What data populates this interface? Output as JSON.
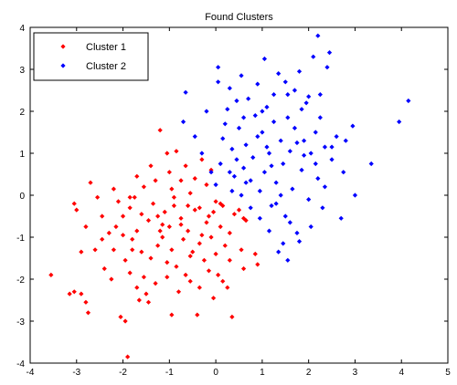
{
  "chart_data": {
    "type": "scatter",
    "title": "Found Clusters",
    "xlabel": "",
    "ylabel": "",
    "xlim": [
      -4,
      5
    ],
    "ylim": [
      -4,
      4
    ],
    "xticks": [
      -4,
      -3,
      -2,
      -1,
      0,
      1,
      2,
      3,
      4,
      5
    ],
    "yticks": [
      -4,
      -3,
      -2,
      -1,
      0,
      1,
      2,
      3,
      4
    ],
    "grid": false,
    "legend_position": "top-left",
    "marker": "diamond",
    "series": [
      {
        "name": "Cluster 1",
        "color": "#ff0000",
        "points": [
          [
            -3.55,
            -1.9
          ],
          [
            -3.15,
            -2.35
          ],
          [
            -3.05,
            -2.3
          ],
          [
            -2.9,
            -2.35
          ],
          [
            -2.8,
            -2.55
          ],
          [
            -2.75,
            -2.8
          ],
          [
            -3.05,
            -0.2
          ],
          [
            -3.0,
            -0.35
          ],
          [
            -2.8,
            -0.75
          ],
          [
            -2.7,
            0.3
          ],
          [
            -2.55,
            -0.05
          ],
          [
            -2.45,
            -0.5
          ],
          [
            -2.4,
            -1.75
          ],
          [
            -2.3,
            -0.9
          ],
          [
            -2.2,
            -1.3
          ],
          [
            -2.15,
            -0.75
          ],
          [
            -2.1,
            -0.15
          ],
          [
            -2.05,
            -2.9
          ],
          [
            -2.0,
            -0.95
          ],
          [
            -1.95,
            -3.0
          ],
          [
            -1.9,
            -3.85
          ],
          [
            -1.85,
            -1.85
          ],
          [
            -1.85,
            -0.3
          ],
          [
            -1.8,
            -1.05
          ],
          [
            -1.75,
            -0.05
          ],
          [
            -1.7,
            -0.85
          ],
          [
            -1.65,
            -2.5
          ],
          [
            -1.6,
            -1.35
          ],
          [
            -1.55,
            -1.95
          ],
          [
            -1.5,
            -2.35
          ],
          [
            -1.45,
            -0.6
          ],
          [
            -1.4,
            -1.5
          ],
          [
            -1.35,
            -0.2
          ],
          [
            -1.3,
            -2.1
          ],
          [
            -1.25,
            -1.2
          ],
          [
            -1.2,
            -0.85
          ],
          [
            -1.15,
            -1.0
          ],
          [
            -1.1,
            -0.4
          ],
          [
            -1.05,
            -1.6
          ],
          [
            -1.0,
            -0.75
          ],
          [
            -0.95,
            -1.3
          ],
          [
            -0.9,
            -0.25
          ],
          [
            -0.85,
            -1.7
          ],
          [
            -0.8,
            -2.3
          ],
          [
            -0.75,
            -0.55
          ],
          [
            -0.7,
            -1.05
          ],
          [
            -0.65,
            -1.9
          ],
          [
            -0.6,
            -0.85
          ],
          [
            -0.55,
            -2.05
          ],
          [
            -0.5,
            -1.35
          ],
          [
            -0.45,
            -0.35
          ],
          [
            -0.4,
            -2.85
          ],
          [
            -0.35,
            -1.15
          ],
          [
            -0.3,
            -0.95
          ],
          [
            -0.25,
            -1.55
          ],
          [
            -0.2,
            -0.65
          ],
          [
            -0.15,
            -1.8
          ],
          [
            -0.1,
            -1.0
          ],
          [
            -0.05,
            -0.4
          ],
          [
            0.0,
            -1.4
          ],
          [
            0.05,
            -1.9
          ],
          [
            0.1,
            -0.75
          ],
          [
            0.15,
            -0.25
          ],
          [
            0.2,
            -1.2
          ],
          [
            0.25,
            -2.2
          ],
          [
            0.3,
            -0.9
          ],
          [
            0.35,
            -2.9
          ],
          [
            0.4,
            -0.45
          ],
          [
            0.5,
            -0.35
          ],
          [
            0.55,
            -1.3
          ],
          [
            0.6,
            -0.55
          ],
          [
            0.65,
            -0.6
          ],
          [
            0.85,
            -1.4
          ],
          [
            0.9,
            -1.65
          ],
          [
            -1.2,
            1.55
          ],
          [
            -1.05,
            1.0
          ],
          [
            -1.0,
            0.55
          ],
          [
            -0.95,
            0.15
          ],
          [
            -0.85,
            1.05
          ],
          [
            -0.75,
            0.35
          ],
          [
            -0.65,
            0.7
          ],
          [
            -0.55,
            0.05
          ],
          [
            -0.45,
            0.4
          ],
          [
            -0.3,
            0.85
          ],
          [
            -0.2,
            0.25
          ],
          [
            -0.1,
            0.6
          ],
          [
            0.0,
            -0.15
          ],
          [
            -1.4,
            0.7
          ],
          [
            -1.55,
            0.2
          ],
          [
            -1.7,
            0.45
          ],
          [
            -1.85,
            -0.05
          ],
          [
            -2.2,
            0.15
          ],
          [
            -1.6,
            -0.45
          ],
          [
            -1.3,
            0.35
          ],
          [
            -0.9,
            -0.05
          ],
          [
            -0.6,
            -0.25
          ],
          [
            -0.35,
            -0.3
          ],
          [
            -0.15,
            -0.5
          ],
          [
            0.1,
            -0.2
          ],
          [
            -1.25,
            -0.5
          ],
          [
            -0.75,
            -0.7
          ],
          [
            -2.0,
            -0.5
          ],
          [
            -2.45,
            -1.05
          ],
          [
            -1.95,
            -1.55
          ],
          [
            -2.25,
            -2.0
          ],
          [
            -1.7,
            -2.2
          ],
          [
            -1.05,
            -1.95
          ],
          [
            -0.35,
            -2.2
          ],
          [
            0.15,
            -2.05
          ],
          [
            0.6,
            -1.75
          ],
          [
            -0.95,
            -2.85
          ],
          [
            -1.45,
            -2.55
          ],
          [
            -2.6,
            -1.3
          ],
          [
            -2.9,
            -1.35
          ],
          [
            -1.15,
            -0.7
          ],
          [
            -0.55,
            -1.45
          ],
          [
            0.3,
            -1.55
          ],
          [
            -0.05,
            -2.45
          ],
          [
            -1.8,
            -1.3
          ]
        ]
      },
      {
        "name": "Cluster 2",
        "color": "#0000ff",
        "points": [
          [
            0.05,
            3.05
          ],
          [
            0.05,
            2.7
          ],
          [
            -0.2,
            2.0
          ],
          [
            -0.65,
            2.45
          ],
          [
            -0.7,
            1.75
          ],
          [
            -0.45,
            1.4
          ],
          [
            -0.3,
            1.0
          ],
          [
            -0.1,
            0.55
          ],
          [
            0.0,
            0.25
          ],
          [
            0.1,
            0.75
          ],
          [
            0.15,
            1.35
          ],
          [
            0.25,
            2.05
          ],
          [
            0.3,
            2.55
          ],
          [
            0.35,
            1.1
          ],
          [
            0.4,
            0.45
          ],
          [
            0.45,
            0.85
          ],
          [
            0.5,
            1.6
          ],
          [
            0.55,
            0.0
          ],
          [
            0.6,
            0.65
          ],
          [
            0.65,
            1.2
          ],
          [
            0.7,
            2.3
          ],
          [
            0.75,
            0.35
          ],
          [
            0.8,
            0.9
          ],
          [
            0.85,
            1.9
          ],
          [
            0.9,
            2.65
          ],
          [
            0.95,
            0.1
          ],
          [
            1.0,
            1.5
          ],
          [
            1.05,
            0.55
          ],
          [
            1.1,
            2.1
          ],
          [
            1.15,
            1.0
          ],
          [
            1.2,
            -0.25
          ],
          [
            1.25,
            1.75
          ],
          [
            1.3,
            0.3
          ],
          [
            1.35,
            2.9
          ],
          [
            1.4,
            1.3
          ],
          [
            1.45,
            0.75
          ],
          [
            1.5,
            -0.5
          ],
          [
            1.55,
            2.4
          ],
          [
            1.6,
            1.05
          ],
          [
            1.65,
            0.15
          ],
          [
            1.7,
            1.6
          ],
          [
            1.75,
            -0.9
          ],
          [
            1.8,
            2.95
          ],
          [
            1.85,
            0.6
          ],
          [
            1.9,
            1.3
          ],
          [
            1.95,
            2.2
          ],
          [
            2.0,
            -0.1
          ],
          [
            2.05,
            1.0
          ],
          [
            2.1,
            3.3
          ],
          [
            2.15,
            1.5
          ],
          [
            2.2,
            0.4
          ],
          [
            2.25,
            2.4
          ],
          [
            2.3,
            -0.3
          ],
          [
            2.35,
            1.15
          ],
          [
            2.4,
            3.05
          ],
          [
            2.5,
            0.85
          ],
          [
            2.6,
            1.4
          ],
          [
            2.7,
            -0.55
          ],
          [
            2.8,
            1.3
          ],
          [
            2.95,
            1.65
          ],
          [
            3.0,
            0.0
          ],
          [
            3.35,
            0.75
          ],
          [
            3.95,
            1.75
          ],
          [
            4.15,
            2.25
          ],
          [
            2.2,
            3.8
          ],
          [
            2.45,
            3.4
          ],
          [
            1.05,
            3.25
          ],
          [
            1.5,
            2.7
          ],
          [
            0.55,
            2.85
          ],
          [
            1.25,
            2.4
          ],
          [
            1.85,
            2.05
          ],
          [
            2.0,
            2.35
          ],
          [
            1.15,
            -0.85
          ],
          [
            1.35,
            -1.35
          ],
          [
            1.55,
            -1.55
          ],
          [
            1.45,
            -1.15
          ],
          [
            0.95,
            -0.55
          ],
          [
            1.8,
            -1.1
          ],
          [
            2.05,
            -0.75
          ],
          [
            1.3,
            -0.2
          ],
          [
            0.75,
            -0.3
          ],
          [
            0.9,
            1.4
          ],
          [
            1.55,
            1.85
          ],
          [
            2.35,
            0.2
          ],
          [
            2.75,
            0.55
          ],
          [
            1.7,
            2.5
          ],
          [
            0.35,
            0.1
          ],
          [
            0.6,
            1.85
          ],
          [
            0.2,
            1.7
          ],
          [
            1.2,
            0.7
          ],
          [
            1.9,
            0.95
          ],
          [
            2.25,
            1.85
          ],
          [
            0.45,
            2.25
          ],
          [
            1.0,
            2.0
          ],
          [
            1.75,
            1.25
          ],
          [
            2.15,
            0.75
          ],
          [
            0.65,
            0.3
          ],
          [
            1.4,
            0.0
          ],
          [
            2.5,
            1.15
          ],
          [
            1.6,
            -0.65
          ],
          [
            1.1,
            1.15
          ],
          [
            0.3,
            0.55
          ]
        ]
      }
    ]
  }
}
